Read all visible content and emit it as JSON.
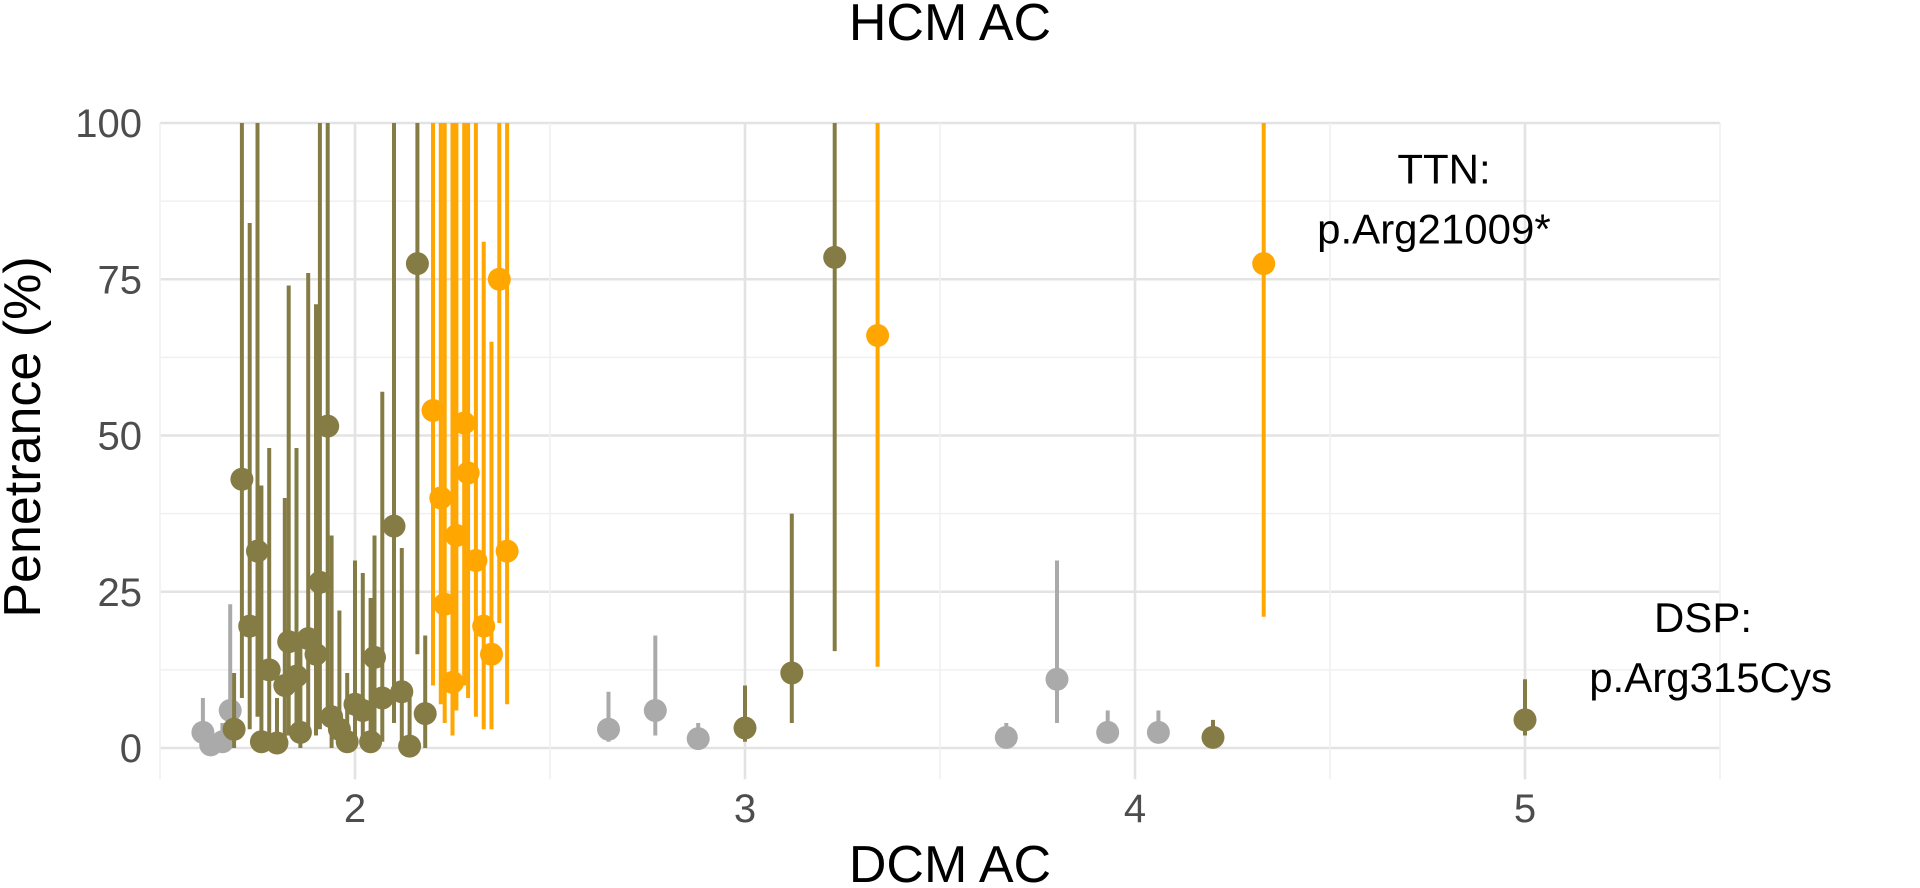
{
  "chart_data": {
    "type": "scatter",
    "title": "HCM AC",
    "xlabel": "DCM AC",
    "ylabel": "Penetrance (%)",
    "xlim": [
      1.5,
      5.5
    ],
    "ylim": [
      -5,
      100
    ],
    "x_ticks": [
      "2",
      "3",
      "4",
      "5"
    ],
    "y_ticks": [
      "0",
      "25",
      "50",
      "75",
      "100"
    ],
    "grid": true,
    "colors": {
      "gray": "#aaaaaa",
      "olive": "#857c45",
      "orange": "#ffa600"
    },
    "annotations": [
      {
        "lines": [
          "TTN:",
          "p.Arg21009*"
        ],
        "x": 4.33,
        "y": 77.5
      },
      {
        "lines": [
          "DSP:",
          "p.Arg315Cys"
        ],
        "x": 5.0,
        "y": 4.5
      }
    ],
    "series": [
      {
        "name": "gray",
        "color": "#aaaaaa",
        "points": [
          {
            "x": 1.61,
            "y": 2.5,
            "lo": 0,
            "hi": 8
          },
          {
            "x": 1.63,
            "y": 0.5,
            "lo": 0,
            "hi": 3
          },
          {
            "x": 1.66,
            "y": 1,
            "lo": 0,
            "hi": 4
          },
          {
            "x": 1.68,
            "y": 6,
            "lo": 1,
            "hi": 23
          },
          {
            "x": 2.65,
            "y": 3,
            "lo": 1,
            "hi": 9
          },
          {
            "x": 2.77,
            "y": 6,
            "lo": 2,
            "hi": 18
          },
          {
            "x": 2.88,
            "y": 1.5,
            "lo": 0.5,
            "hi": 4
          },
          {
            "x": 3.67,
            "y": 1.7,
            "lo": 0.5,
            "hi": 4
          },
          {
            "x": 3.8,
            "y": 11,
            "lo": 4,
            "hi": 30
          },
          {
            "x": 3.93,
            "y": 2.5,
            "lo": 1,
            "hi": 6
          },
          {
            "x": 4.06,
            "y": 2.5,
            "lo": 1,
            "hi": 6
          }
        ]
      },
      {
        "name": "olive",
        "color": "#857c45",
        "points": [
          {
            "x": 1.69,
            "y": 3,
            "lo": 0,
            "hi": 12
          },
          {
            "x": 1.71,
            "y": 43,
            "lo": 8,
            "hi": 100
          },
          {
            "x": 1.73,
            "y": 19.5,
            "lo": 3,
            "hi": 84
          },
          {
            "x": 1.75,
            "y": 31.5,
            "lo": 5,
            "hi": 100
          },
          {
            "x": 1.76,
            "y": 1,
            "lo": 0,
            "hi": 42
          },
          {
            "x": 1.78,
            "y": 12.5,
            "lo": 2,
            "hi": 48
          },
          {
            "x": 1.8,
            "y": 0.8,
            "lo": 0,
            "hi": 8
          },
          {
            "x": 1.82,
            "y": 10,
            "lo": 1,
            "hi": 40
          },
          {
            "x": 1.83,
            "y": 17,
            "lo": 2,
            "hi": 74
          },
          {
            "x": 1.85,
            "y": 11.5,
            "lo": 1,
            "hi": 48
          },
          {
            "x": 1.86,
            "y": 2.5,
            "lo": 0,
            "hi": 18
          },
          {
            "x": 1.88,
            "y": 17.5,
            "lo": 2,
            "hi": 76
          },
          {
            "x": 1.9,
            "y": 15,
            "lo": 2,
            "hi": 71
          },
          {
            "x": 1.91,
            "y": 26.5,
            "lo": 3,
            "hi": 100
          },
          {
            "x": 1.93,
            "y": 51.5,
            "lo": 6,
            "hi": 100
          },
          {
            "x": 1.94,
            "y": 5,
            "lo": 0,
            "hi": 34
          },
          {
            "x": 1.96,
            "y": 3,
            "lo": 0,
            "hi": 22
          },
          {
            "x": 1.98,
            "y": 1,
            "lo": 0,
            "hi": 12
          },
          {
            "x": 2.0,
            "y": 7,
            "lo": 1,
            "hi": 30
          },
          {
            "x": 2.02,
            "y": 6,
            "lo": 0,
            "hi": 28
          },
          {
            "x": 2.04,
            "y": 1,
            "lo": 0,
            "hi": 24
          },
          {
            "x": 2.05,
            "y": 14.5,
            "lo": 2,
            "hi": 34
          },
          {
            "x": 2.07,
            "y": 8,
            "lo": 1,
            "hi": 57
          },
          {
            "x": 2.1,
            "y": 35.5,
            "lo": 4,
            "hi": 100
          },
          {
            "x": 2.12,
            "y": 9,
            "lo": 1,
            "hi": 32
          },
          {
            "x": 2.14,
            "y": 0.3,
            "lo": 0,
            "hi": 8
          },
          {
            "x": 2.16,
            "y": 77.5,
            "lo": 15,
            "hi": 100
          },
          {
            "x": 2.18,
            "y": 5.5,
            "lo": 0,
            "hi": 18
          },
          {
            "x": 3.0,
            "y": 3.2,
            "lo": 1,
            "hi": 10
          },
          {
            "x": 3.12,
            "y": 12,
            "lo": 4,
            "hi": 37.5
          },
          {
            "x": 3.23,
            "y": 78.5,
            "lo": 15.5,
            "hi": 100
          },
          {
            "x": 4.2,
            "y": 1.7,
            "lo": 0.5,
            "hi": 4.5
          },
          {
            "x": 5.0,
            "y": 4.5,
            "lo": 2,
            "hi": 11
          }
        ]
      },
      {
        "name": "orange",
        "color": "#ffa600",
        "points": [
          {
            "x": 2.2,
            "y": 54,
            "lo": 10,
            "hi": 100
          },
          {
            "x": 2.22,
            "y": 40,
            "lo": 7,
            "hi": 100
          },
          {
            "x": 2.23,
            "y": 23,
            "lo": 4,
            "hi": 100
          },
          {
            "x": 2.25,
            "y": 10.5,
            "lo": 2,
            "hi": 100
          },
          {
            "x": 2.26,
            "y": 34,
            "lo": 6,
            "hi": 100
          },
          {
            "x": 2.28,
            "y": 52,
            "lo": 10,
            "hi": 100
          },
          {
            "x": 2.29,
            "y": 44,
            "lo": 8,
            "hi": 100
          },
          {
            "x": 2.31,
            "y": 30,
            "lo": 5,
            "hi": 100
          },
          {
            "x": 2.33,
            "y": 19.5,
            "lo": 3,
            "hi": 81
          },
          {
            "x": 2.35,
            "y": 15,
            "lo": 3,
            "hi": 65
          },
          {
            "x": 2.37,
            "y": 75,
            "lo": 20,
            "hi": 100
          },
          {
            "x": 2.39,
            "y": 31.5,
            "lo": 7,
            "hi": 100
          },
          {
            "x": 3.34,
            "y": 66,
            "lo": 13,
            "hi": 100
          },
          {
            "x": 4.33,
            "y": 77.5,
            "lo": 21,
            "hi": 100
          }
        ]
      }
    ]
  }
}
